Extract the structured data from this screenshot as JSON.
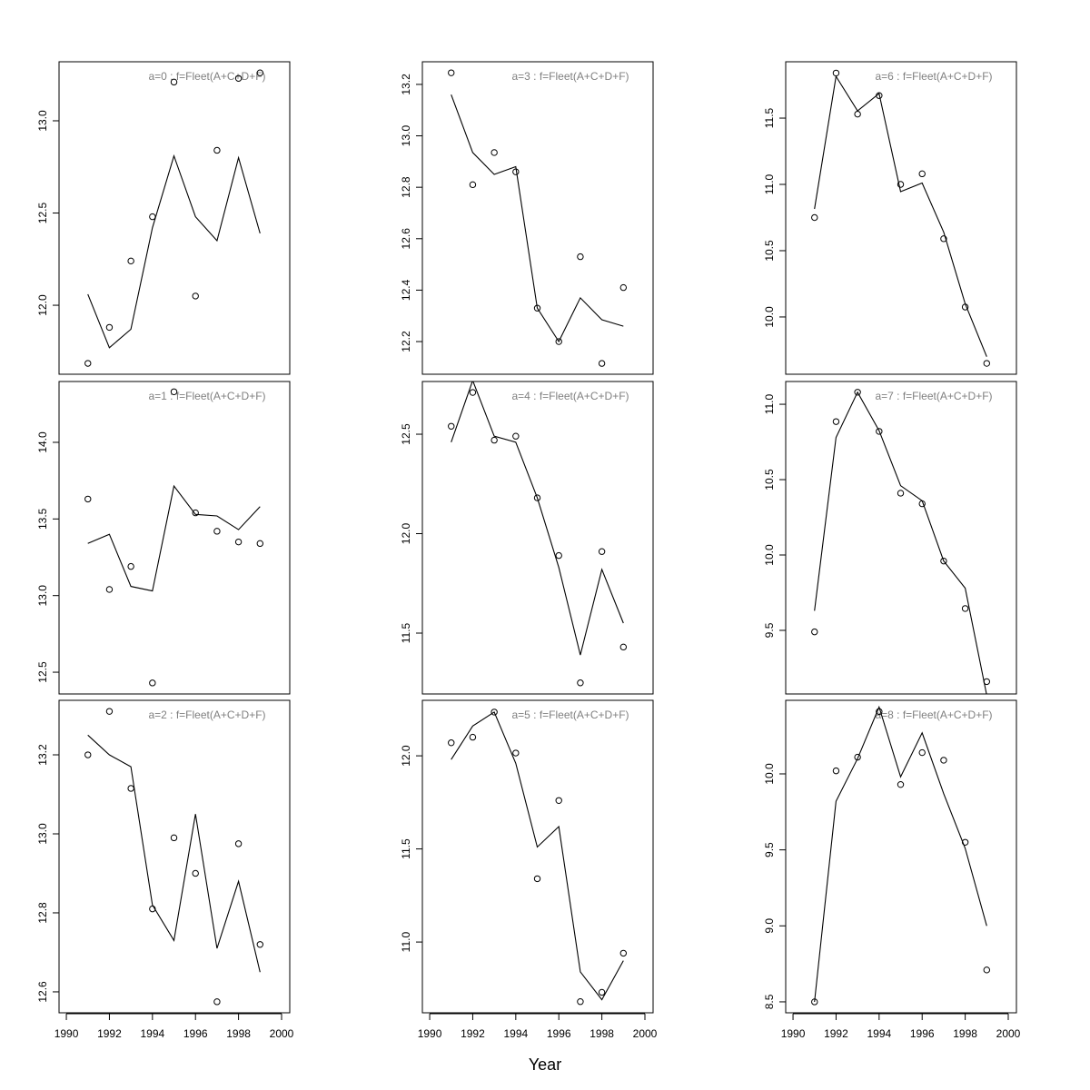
{
  "chart_data": {
    "type": "scatter",
    "xlabel": "Year",
    "xlim": [
      1989.66,
      2000.38
    ],
    "xticks": [
      1990,
      1992,
      1994,
      1996,
      1998,
      2000
    ],
    "x": [
      1991,
      1992,
      1993,
      1994,
      1995,
      1996,
      1997,
      1998,
      1999
    ],
    "colors": {
      "points": "#000000",
      "line": "#000000",
      "title": "#808080"
    },
    "panels": [
      {
        "title": "a=0  :  f=Fleet(A+C+D+F)",
        "ylim": [
          11.626,
          13.32
        ],
        "yticks": [
          "12.0",
          "12.5",
          "13.0"
        ],
        "observed": [
          11.685,
          11.88,
          12.24,
          12.48,
          13.21,
          12.05,
          12.84,
          13.23,
          13.26
        ],
        "fitted": [
          12.06,
          11.77,
          11.87,
          12.42,
          12.81,
          12.48,
          12.35,
          12.8,
          12.39
        ]
      },
      {
        "title": "a=3  :  f=Fleet(A+C+D+F)",
        "ylim": [
          12.073,
          13.288
        ],
        "yticks": [
          "12.2",
          "12.4",
          "12.6",
          "12.8",
          "13.0",
          "13.2"
        ],
        "observed": [
          13.245,
          12.81,
          12.935,
          12.86,
          12.33,
          12.2,
          12.53,
          12.115,
          12.41
        ],
        "fitted": [
          13.16,
          12.935,
          12.85,
          12.88,
          12.33,
          12.2,
          12.37,
          12.285,
          12.26
        ]
      },
      {
        "title": "a=6  :  f=Fleet(A+C+D+F)",
        "ylim": [
          9.568,
          11.925
        ],
        "yticks": [
          "10.0",
          "10.5",
          "11.0",
          "11.5"
        ],
        "observed": [
          10.75,
          11.84,
          11.53,
          11.67,
          11.0,
          11.08,
          10.59,
          10.075,
          9.65
        ],
        "fitted": [
          10.815,
          11.815,
          11.555,
          11.685,
          10.945,
          11.01,
          10.64,
          10.1,
          9.7
        ]
      },
      {
        "title": "a=1  :  f=Fleet(A+C+D+F)",
        "ylim": [
          12.358,
          14.397
        ],
        "yticks": [
          "12.5",
          "13.0",
          "13.5",
          "14.0"
        ],
        "observed": [
          13.63,
          13.04,
          13.19,
          12.43,
          14.33,
          13.54,
          13.42,
          13.35,
          13.34
        ],
        "fitted": [
          13.34,
          13.4,
          13.06,
          13.03,
          13.715,
          13.53,
          13.52,
          13.43,
          13.58
        ]
      },
      {
        "title": "a=4  :  f=Fleet(A+C+D+F)",
        "ylim": [
          11.194,
          12.765
        ],
        "yticks": [
          "11.5",
          "12.0",
          "12.5"
        ],
        "observed": [
          12.54,
          12.71,
          12.47,
          12.49,
          12.18,
          11.89,
          11.25,
          11.91,
          11.43
        ],
        "fitted": [
          12.46,
          12.77,
          12.49,
          12.46,
          12.18,
          11.83,
          11.39,
          11.82,
          11.55
        ]
      },
      {
        "title": "a=7  :  f=Fleet(A+C+D+F)",
        "ylim": [
          9.078,
          11.151
        ],
        "yticks": [
          "9.5",
          "10.0",
          "10.5",
          "11.0"
        ],
        "observed": [
          9.49,
          10.885,
          11.08,
          10.82,
          10.41,
          10.34,
          9.96,
          9.645,
          9.16
        ],
        "fitted": [
          9.63,
          10.78,
          11.08,
          10.825,
          10.46,
          10.36,
          9.96,
          9.78,
          9.07
        ]
      },
      {
        "title": "a=2  :  f=Fleet(A+C+D+F)",
        "ylim": [
          12.547,
          13.338
        ],
        "yticks": [
          "12.6",
          "12.8",
          "13.0",
          "13.2"
        ],
        "observed": [
          13.2,
          13.31,
          13.115,
          12.81,
          12.99,
          12.9,
          12.575,
          12.975,
          12.72
        ],
        "fitted": [
          13.25,
          13.2,
          13.17,
          12.82,
          12.73,
          13.05,
          12.71,
          12.88,
          12.65
        ]
      },
      {
        "title": "a=5  :  f=Fleet(A+C+D+F)",
        "ylim": [
          10.62,
          12.298
        ],
        "yticks": [
          "11.0",
          "11.5",
          "12.0"
        ],
        "observed": [
          12.07,
          12.1,
          12.235,
          12.015,
          11.34,
          11.76,
          10.68,
          10.73,
          10.94
        ],
        "fitted": [
          11.98,
          12.16,
          12.235,
          11.96,
          11.51,
          11.62,
          10.84,
          10.69,
          10.9
        ]
      },
      {
        "title": "a=8  :  f=Fleet(A+C+D+F)",
        "ylim": [
          8.428,
          10.484
        ],
        "yticks": [
          "8.5",
          "9.0",
          "9.5",
          "10.0"
        ],
        "observed": [
          8.5,
          10.02,
          10.11,
          10.41,
          9.93,
          10.14,
          10.09,
          9.55,
          8.71
        ],
        "fitted": [
          8.5,
          9.82,
          10.1,
          10.44,
          9.98,
          10.27,
          9.87,
          9.51,
          9.0
        ]
      }
    ]
  }
}
